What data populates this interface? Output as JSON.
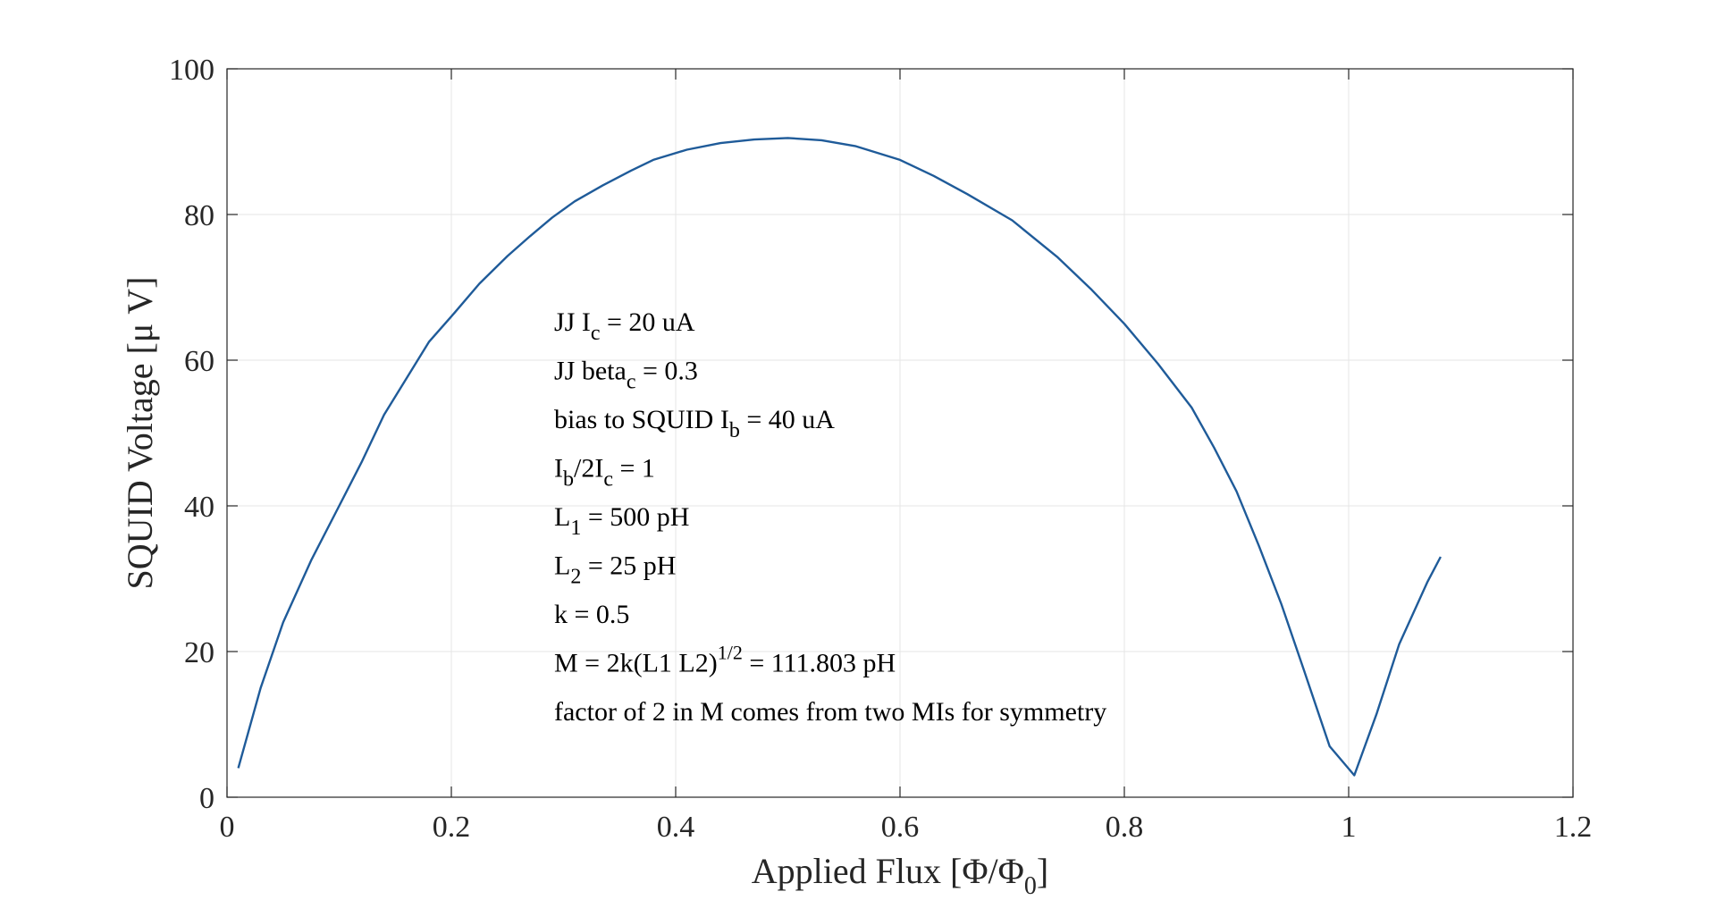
{
  "chart_data": {
    "type": "line",
    "xlabel": {
      "main": "Applied Flux [Φ/Φ",
      "sub": "0",
      "tail": "]"
    },
    "ylabel": "SQUID Voltage [μ V]",
    "xlim": [
      0,
      1.2
    ],
    "ylim": [
      0,
      100
    ],
    "xticks": [
      0,
      0.2,
      0.4,
      0.6,
      0.8,
      1,
      1.2
    ],
    "xtick_labels": [
      "0",
      "0.2",
      "0.4",
      "0.6",
      "0.8",
      "1",
      "1.2"
    ],
    "yticks": [
      0,
      20,
      40,
      60,
      80,
      100
    ],
    "ytick_labels": [
      "0",
      "20",
      "40",
      "60",
      "80",
      "100"
    ],
    "grid": true,
    "color": "#1f5b99",
    "series": [
      {
        "x": [
          0.01,
          0.03,
          0.05,
          0.075,
          0.1,
          0.12,
          0.14,
          0.16,
          0.18,
          0.2,
          0.225,
          0.25,
          0.27,
          0.29,
          0.31,
          0.335,
          0.36,
          0.38,
          0.41,
          0.44,
          0.47,
          0.5,
          0.53,
          0.56,
          0.6,
          0.63,
          0.66,
          0.7,
          0.74,
          0.77,
          0.8,
          0.83,
          0.86,
          0.88,
          0.9,
          0.92,
          0.94,
          0.96,
          0.983,
          1.005,
          1.025,
          1.045,
          1.07,
          1.082
        ],
        "y": [
          4,
          15,
          24,
          32.5,
          40,
          46,
          52.5,
          57.5,
          62.5,
          66,
          70.5,
          74.3,
          77,
          79.6,
          81.8,
          84,
          86,
          87.5,
          88.9,
          89.8,
          90.3,
          90.5,
          90.2,
          89.4,
          87.5,
          85.3,
          82.8,
          79.2,
          74.2,
          69.8,
          65,
          59.5,
          53.5,
          48,
          42,
          34.5,
          26.5,
          17.5,
          7,
          3,
          11.5,
          21,
          29.5,
          33
        ]
      }
    ],
    "annotations": [
      {
        "parts": [
          {
            "t": "JJ I"
          },
          {
            "t": "c",
            "sub": true
          },
          {
            "t": " = 20 uA"
          }
        ]
      },
      {
        "parts": [
          {
            "t": "JJ beta"
          },
          {
            "t": "c",
            "sub": true
          },
          {
            "t": " = 0.3"
          }
        ]
      },
      {
        "parts": [
          {
            "t": "bias to SQUID I"
          },
          {
            "t": "b",
            "sub": true
          },
          {
            "t": " = 40 uA"
          }
        ]
      },
      {
        "parts": [
          {
            "t": "I"
          },
          {
            "t": "b",
            "sub": true
          },
          {
            "t": "/2I"
          },
          {
            "t": "c",
            "sub": true
          },
          {
            "t": " = 1"
          }
        ]
      },
      {
        "parts": [
          {
            "t": "L"
          },
          {
            "t": "1",
            "sub": true
          },
          {
            "t": " = 500 pH"
          }
        ]
      },
      {
        "parts": [
          {
            "t": "L"
          },
          {
            "t": "2",
            "sub": true
          },
          {
            "t": " = 25 pH"
          }
        ]
      },
      {
        "parts": [
          {
            "t": "k = 0.5"
          }
        ]
      },
      {
        "parts": [
          {
            "t": "M = 2k(L1 L2)"
          },
          {
            "t": "1/2",
            "sup": true
          },
          {
            "t": " = 111.803 pH"
          }
        ]
      },
      {
        "parts": [
          {
            "t": "factor of 2 in M comes from two MIs for symmetry"
          }
        ]
      }
    ]
  }
}
